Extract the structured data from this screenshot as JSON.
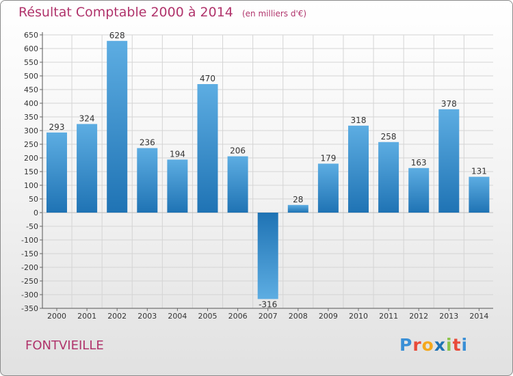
{
  "colors": {
    "title": "#b0336b",
    "bar_light": "#5dade2",
    "bar_dark": "#1f73b4",
    "grid": "#d4d4d4"
  },
  "header": {
    "title": "Résultat Comptable 2000 à 2014",
    "unit": "(en milliers d'€)"
  },
  "footer": {
    "city": "FONTVIEILLE",
    "logo_letters": [
      "P",
      "r",
      "o",
      "x",
      "i",
      "t",
      "i"
    ],
    "logo_colors": [
      "#3a8fd6",
      "#e84b3a",
      "#f4a81d",
      "#1f73b4",
      "#8bc34a",
      "#e84b3a",
      "#3a8fd6"
    ]
  },
  "chart_data": {
    "type": "bar",
    "title": "Résultat Comptable 2000 à 2014",
    "xlabel": "",
    "ylabel": "",
    "categories": [
      "2000",
      "2001",
      "2002",
      "2003",
      "2004",
      "2005",
      "2006",
      "2007",
      "2008",
      "2009",
      "2010",
      "2011",
      "2012",
      "2013",
      "2014"
    ],
    "values": [
      293,
      324,
      628,
      236,
      194,
      470,
      206,
      -316,
      28,
      179,
      318,
      258,
      163,
      378,
      131
    ],
    "ylim": [
      -350,
      650
    ],
    "yticks": [
      650,
      600,
      550,
      500,
      450,
      400,
      350,
      300,
      250,
      200,
      150,
      100,
      50,
      0,
      -50,
      -100,
      -150,
      -200,
      -250,
      -300,
      -350
    ],
    "grid": true,
    "legend": "none"
  }
}
